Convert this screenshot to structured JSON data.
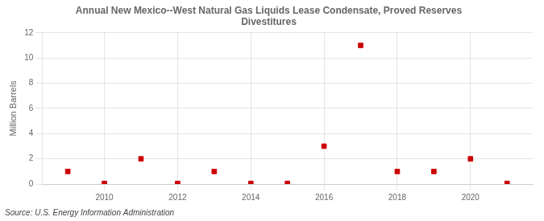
{
  "chart_data": {
    "type": "scatter",
    "title": "Annual New Mexico--West Natural Gas Liquids Lease Condensate, Proved Reserves\nDivestitures",
    "ylabel": "Million Barrels",
    "annotation": "Source: U.S. Energy Information Administration",
    "x": [
      2009,
      2010,
      2011,
      2012,
      2013,
      2014,
      2015,
      2016,
      2017,
      2018,
      2019,
      2020,
      2021
    ],
    "values": [
      1.0,
      0.05,
      2.0,
      0.05,
      1.0,
      0.05,
      0.05,
      3.0,
      11.0,
      1.0,
      1.0,
      2.0,
      0.05
    ],
    "color": "#cc0000",
    "marker": "square",
    "xlim": [
      2008.3,
      2021.7
    ],
    "ylim": [
      0,
      12
    ],
    "xticks": [
      2010,
      2012,
      2014,
      2016,
      2018,
      2020
    ],
    "yticks": [
      0,
      2,
      4,
      6,
      8,
      10,
      12
    ],
    "grid": true,
    "legend": false
  }
}
